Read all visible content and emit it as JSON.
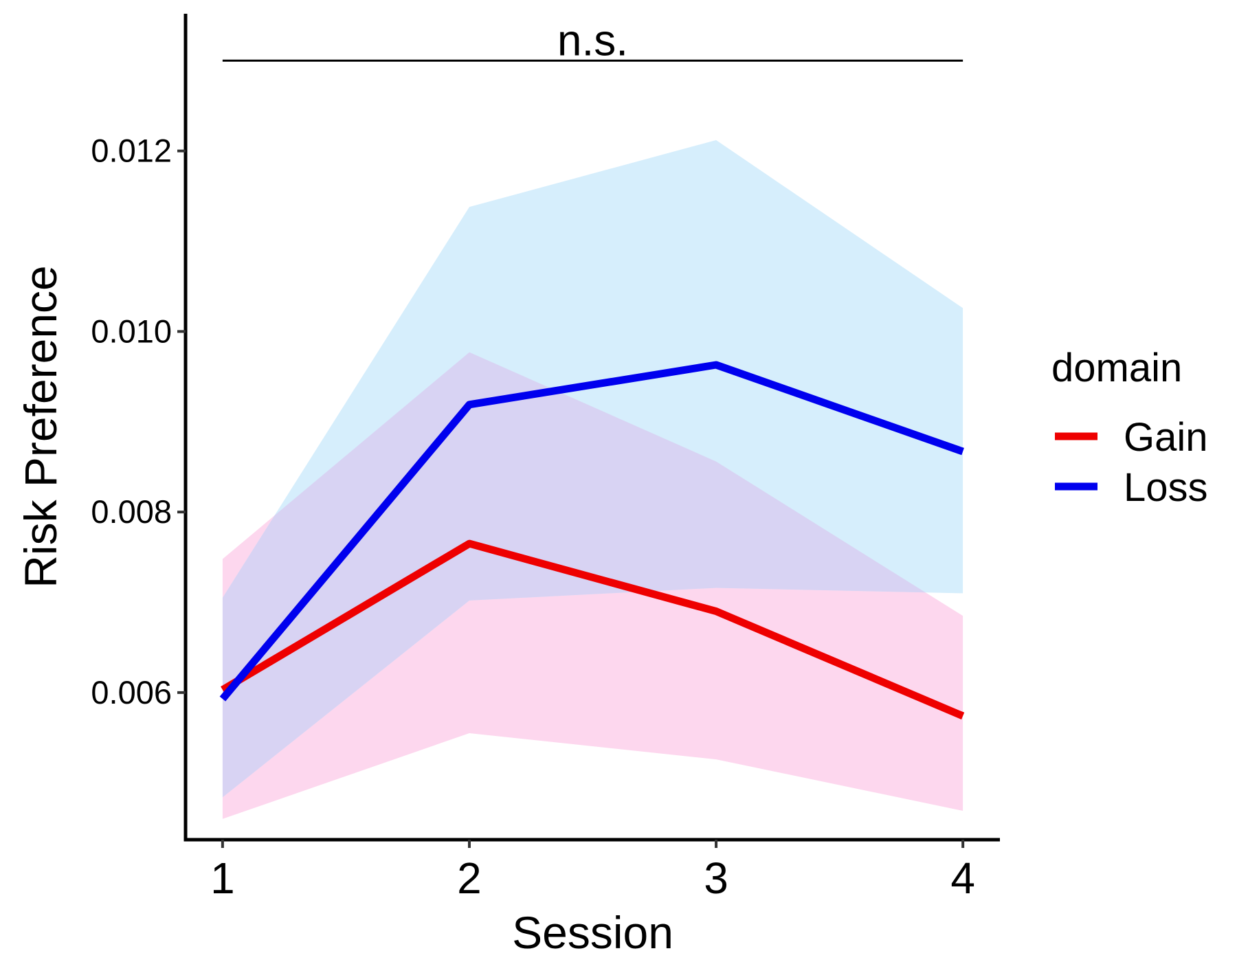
{
  "chart_data": {
    "type": "line",
    "title": "",
    "xlabel": "Session",
    "ylabel": "Risk Preference",
    "x": [
      1,
      2,
      3,
      4
    ],
    "x_tick_labels": [
      "1",
      "2",
      "3",
      "4"
    ],
    "y_ticks": [
      0.006,
      0.008,
      0.01,
      0.012
    ],
    "y_tick_labels": [
      "0.006",
      "0.008",
      "0.010",
      "0.012"
    ],
    "xlim": [
      0.85,
      4.15
    ],
    "ylim": [
      0.00437,
      0.01352
    ],
    "grid": false,
    "legend": {
      "title": "domain",
      "placement": "right"
    },
    "series": [
      {
        "name": "Gain",
        "color": "#ee0000",
        "ribbon_color": "#fdd7ee",
        "values": [
          0.00603,
          0.00765,
          0.0069,
          0.00574
        ],
        "lower": [
          0.0046,
          0.00555,
          0.00526,
          0.00469
        ],
        "upper": [
          0.00748,
          0.00977,
          0.00856,
          0.00685
        ]
      },
      {
        "name": "Loss",
        "color": "#0000ee",
        "ribbon_color": "#d6eefc",
        "values": [
          0.00593,
          0.00919,
          0.00963,
          0.00867
        ],
        "lower": [
          0.00484,
          0.00702,
          0.00716,
          0.0071
        ],
        "upper": [
          0.00705,
          0.01138,
          0.01212,
          0.01026
        ]
      }
    ],
    "overlap_color": "#d8d3f3",
    "annotations": [
      {
        "text": "n.s.",
        "x_from": 1,
        "x_to": 4,
        "y": 0.013
      }
    ]
  }
}
